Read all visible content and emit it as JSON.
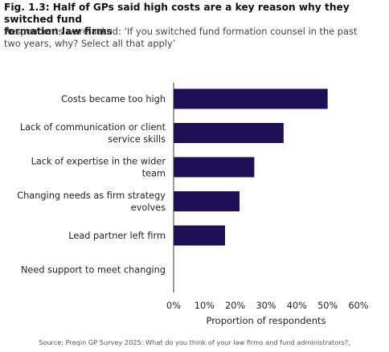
{
  "title_lines": [
    "Fig. 1.3: Half of GPs said high costs are a key reason why they switched fund",
    "formation law firms"
  ],
  "subtitle_lines": [
    "Respondents were asked: ‘If you switched fund formation counsel in the past",
    "two years, why? Select all that apply’"
  ],
  "source": "Source: Preqin GP Survey 2025: What do you think of your law firms and fund administrators?,",
  "colors": {
    "bar": "#1f0f57",
    "axis": "#333333"
  },
  "chart_data": {
    "type": "bar",
    "orientation": "horizontal",
    "categories": [
      [
        "Costs became too high"
      ],
      [
        "Lack of communication or client",
        "service skills"
      ],
      [
        "Lack of expertise in the wider",
        "team"
      ],
      [
        "Changing needs as firm strategy",
        "evolves"
      ],
      [
        "Lead partner left firm"
      ],
      [
        "Need support to meet changing"
      ]
    ],
    "values": [
      50,
      35.7,
      26.2,
      21.4,
      16.7,
      null
    ],
    "xlim": [
      0,
      60
    ],
    "xticks": [
      0,
      10,
      20,
      30,
      40,
      50,
      60
    ],
    "xtick_labels": [
      "0%",
      "10%",
      "20%",
      "30%",
      "40%",
      "50%",
      "60%"
    ],
    "xlabel": "Proportion of respondents",
    "ylabel": "",
    "grid": false,
    "legend": "none"
  }
}
